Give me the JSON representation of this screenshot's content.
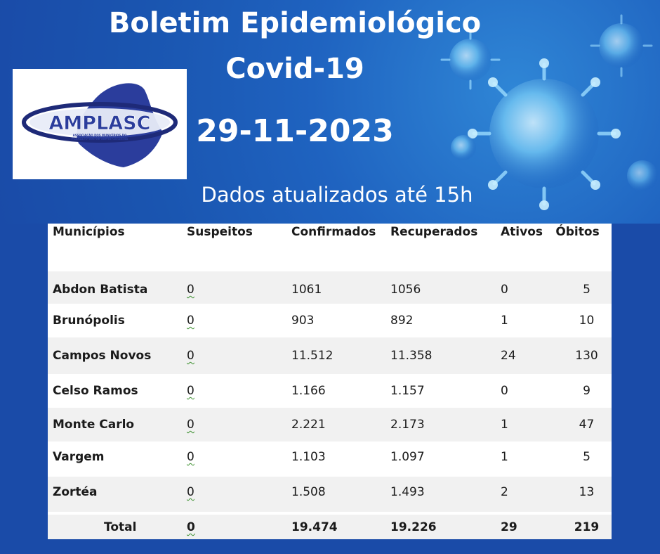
{
  "banner": {
    "title_line1": "Boletim Epidemiológico",
    "title_line2": "Covid-19",
    "date": "29-11-2023",
    "subtitle": "Dados atualizados até 15h",
    "logo_text": "AMPLASC",
    "logo_subtext1": "ASSOCIAÇÃO DOS MUNICÍPIOS DO",
    "logo_subtext2": "PLANALTO SUL DE SANTA CATARINA"
  },
  "table": {
    "headers": [
      "Municípios",
      "Suspeitos",
      "Confirmados",
      "Recuperados",
      "Ativos",
      "Óbitos"
    ],
    "rows": [
      [
        "Abdon Batista",
        "0",
        "1061",
        "1056",
        "0",
        "5"
      ],
      [
        "Brunópolis",
        "0",
        "903",
        "892",
        "1",
        "10"
      ],
      [
        "Campos Novos",
        "0",
        "11.512",
        "11.358",
        "24",
        "130"
      ],
      [
        "Celso Ramos",
        "0",
        "1.166",
        "1.157",
        "0",
        "9"
      ],
      [
        "Monte Carlo",
        "0",
        "2.221",
        "2.173",
        "1",
        "47"
      ],
      [
        "Vargem",
        "0",
        "1.103",
        "1.097",
        "1",
        "5"
      ],
      [
        "Zortéa",
        "0",
        "1.508",
        "1.493",
        "2",
        "13"
      ]
    ],
    "total": [
      "Total",
      "0",
      "19.474",
      "19.226",
      "29",
      "219"
    ]
  },
  "colors": {
    "background": "#1a4ba8",
    "logo_blue": "#2b3d9c",
    "text_white": "#ffffff"
  }
}
